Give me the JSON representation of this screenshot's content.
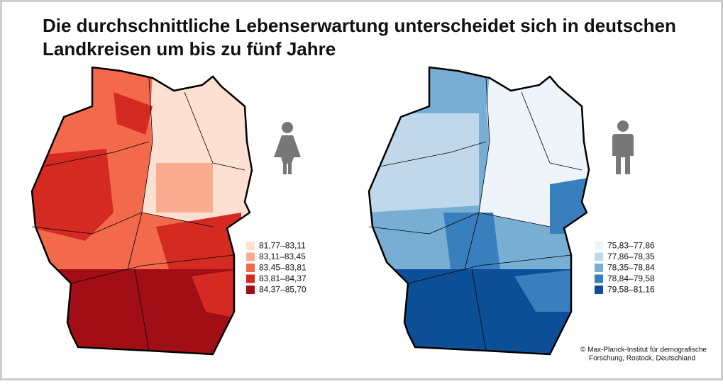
{
  "title": [
    "Die durchschnittliche Lebenserwartung unterscheidet sich in deutschen",
    "Landkreisen um bis zu fünf Jahre"
  ],
  "maps": [
    {
      "legend": [
        {
          "label": "81,77–83,11",
          "color": "#fde0d2"
        },
        {
          "label": "83,11–83,45",
          "color": "#f9ac8f"
        },
        {
          "label": "83,45–83,81",
          "color": "#f26a4b"
        },
        {
          "label": "83,81–84,37",
          "color": "#d42a22"
        },
        {
          "label": "84,37–85,70",
          "color": "#a10e16"
        }
      ]
    },
    {
      "legend": [
        {
          "label": "75,83–77,86",
          "color": "#eff4fb"
        },
        {
          "label": "77,86–78,35",
          "color": "#c1d8ea"
        },
        {
          "label": "78,35–78,84",
          "color": "#78aed4"
        },
        {
          "label": "78,84–79,58",
          "color": "#3a7fbd"
        },
        {
          "label": "79,58–81,16",
          "color": "#0d4f97"
        }
      ]
    }
  ],
  "credit": [
    "© Max-Planck-Institut für demografische",
    "Forschung, Rostock, Deutschland"
  ]
}
